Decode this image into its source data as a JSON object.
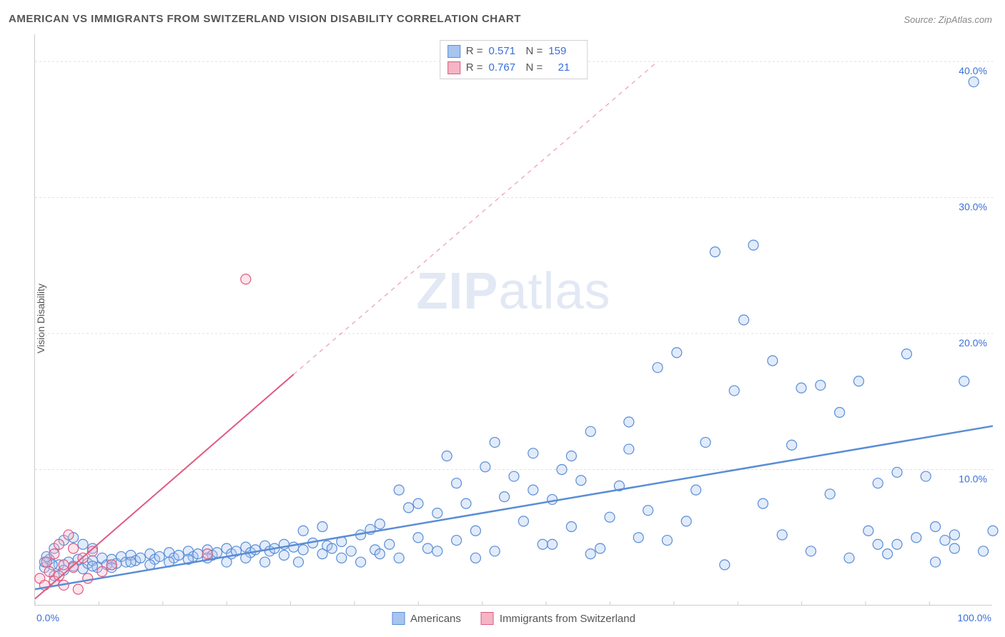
{
  "title": "AMERICAN VS IMMIGRANTS FROM SWITZERLAND VISION DISABILITY CORRELATION CHART",
  "source": "Source: ZipAtlas.com",
  "y_axis_label": "Vision Disability",
  "watermark_bold": "ZIP",
  "watermark_light": "atlas",
  "chart": {
    "type": "scatter",
    "xlim": [
      0,
      100
    ],
    "ylim": [
      0,
      42
    ],
    "x_ticks": [
      0,
      100
    ],
    "x_tick_labels": [
      "0.0%",
      "100.0%"
    ],
    "y_ticks": [
      10,
      20,
      30,
      40
    ],
    "y_tick_labels": [
      "10.0%",
      "20.0%",
      "30.0%",
      "40.0%"
    ],
    "x_minor_tick_step": 6.67,
    "grid_color": "#e0e0e0",
    "grid_dash": "3,3",
    "background_color": "#ffffff",
    "axis_label_color": "#3b6fd8",
    "axis_label_fontsize": 14,
    "marker_radius": 7,
    "marker_fill_opacity": 0.35,
    "marker_stroke_width": 1.2
  },
  "series": [
    {
      "name": "Americans",
      "color": "#6699e8",
      "fill": "#a8c5f0",
      "stroke": "#5a8dd6",
      "r_value": "0.571",
      "n_value": "159",
      "trend": {
        "x1": 0,
        "y1": 1.2,
        "x2": 100,
        "y2": 13.2,
        "dash_after_x": 100,
        "width": 2.5
      },
      "points": [
        [
          1,
          2.8
        ],
        [
          1.5,
          3.4
        ],
        [
          2,
          2.2
        ],
        [
          2.5,
          3.0
        ],
        [
          3,
          2.6
        ],
        [
          3.5,
          3.2
        ],
        [
          4,
          2.9
        ],
        [
          4.5,
          3.4
        ],
        [
          5,
          2.7
        ],
        [
          5.5,
          3.1
        ],
        [
          6,
          3.3
        ],
        [
          6.5,
          2.8
        ],
        [
          7,
          3.5
        ],
        [
          7.5,
          3.0
        ],
        [
          8,
          3.4
        ],
        [
          8.5,
          3.1
        ],
        [
          9,
          3.6
        ],
        [
          9.5,
          3.2
        ],
        [
          10,
          3.7
        ],
        [
          10.5,
          3.3
        ],
        [
          11,
          3.5
        ],
        [
          12,
          3.8
        ],
        [
          12.5,
          3.4
        ],
        [
          13,
          3.6
        ],
        [
          14,
          3.9
        ],
        [
          14.5,
          3.5
        ],
        [
          15,
          3.7
        ],
        [
          16,
          4.0
        ],
        [
          16.5,
          3.6
        ],
        [
          17,
          3.8
        ],
        [
          18,
          4.1
        ],
        [
          18.5,
          3.7
        ],
        [
          19,
          3.9
        ],
        [
          20,
          4.2
        ],
        [
          20.5,
          3.8
        ],
        [
          21,
          4.0
        ],
        [
          22,
          4.3
        ],
        [
          22.5,
          3.9
        ],
        [
          23,
          4.1
        ],
        [
          24,
          4.4
        ],
        [
          24.5,
          4.0
        ],
        [
          25,
          4.2
        ],
        [
          26,
          4.5
        ],
        [
          27,
          4.3
        ],
        [
          27.5,
          3.2
        ],
        [
          28,
          4.1
        ],
        [
          29,
          4.6
        ],
        [
          30,
          3.8
        ],
        [
          30.5,
          4.4
        ],
        [
          31,
          4.2
        ],
        [
          32,
          4.7
        ],
        [
          33,
          4.0
        ],
        [
          34,
          3.2
        ],
        [
          35,
          5.6
        ],
        [
          35.5,
          4.1
        ],
        [
          36,
          3.8
        ],
        [
          37,
          4.5
        ],
        [
          38,
          8.5
        ],
        [
          39,
          7.2
        ],
        [
          40,
          5.0
        ],
        [
          41,
          4.2
        ],
        [
          42,
          6.8
        ],
        [
          43,
          11.0
        ],
        [
          44,
          4.8
        ],
        [
          45,
          7.5
        ],
        [
          46,
          5.5
        ],
        [
          47,
          10.2
        ],
        [
          48,
          4.0
        ],
        [
          49,
          8.0
        ],
        [
          50,
          9.5
        ],
        [
          51,
          6.2
        ],
        [
          52,
          11.2
        ],
        [
          53,
          4.5
        ],
        [
          54,
          7.8
        ],
        [
          55,
          10.0
        ],
        [
          56,
          5.8
        ],
        [
          57,
          9.2
        ],
        [
          58,
          12.8
        ],
        [
          59,
          4.2
        ],
        [
          60,
          6.5
        ],
        [
          61,
          8.8
        ],
        [
          62,
          11.5
        ],
        [
          63,
          5.0
        ],
        [
          64,
          7.0
        ],
        [
          65,
          17.5
        ],
        [
          66,
          4.8
        ],
        [
          67,
          18.6
        ],
        [
          68,
          6.2
        ],
        [
          69,
          8.5
        ],
        [
          70,
          12.0
        ],
        [
          71,
          26.0
        ],
        [
          72,
          3.0
        ],
        [
          73,
          15.8
        ],
        [
          74,
          21.0
        ],
        [
          75,
          26.5
        ],
        [
          76,
          7.5
        ],
        [
          77,
          18.0
        ],
        [
          78,
          5.2
        ],
        [
          79,
          11.8
        ],
        [
          80,
          16.0
        ],
        [
          81,
          4.0
        ],
        [
          82,
          16.2
        ],
        [
          83,
          8.2
        ],
        [
          84,
          14.2
        ],
        [
          85,
          3.5
        ],
        [
          86,
          16.5
        ],
        [
          87,
          5.5
        ],
        [
          88,
          9.0
        ],
        [
          89,
          3.8
        ],
        [
          90,
          4.5
        ],
        [
          91,
          18.5
        ],
        [
          92,
          5.0
        ],
        [
          93,
          9.5
        ],
        [
          94,
          3.2
        ],
        [
          95,
          4.8
        ],
        [
          96,
          5.2
        ],
        [
          97,
          16.5
        ],
        [
          98,
          38.5
        ],
        [
          99,
          4.0
        ],
        [
          100,
          5.5
        ],
        [
          2,
          4.2
        ],
        [
          3,
          4.8
        ],
        [
          4,
          5.0
        ],
        [
          5,
          4.5
        ],
        [
          6,
          4.2
        ],
        [
          1,
          3.2
        ],
        [
          1.2,
          3.6
        ],
        [
          1.8,
          3.0
        ],
        [
          62,
          13.5
        ],
        [
          58,
          3.8
        ],
        [
          48,
          12.0
        ],
        [
          46,
          3.5
        ],
        [
          52,
          8.5
        ],
        [
          54,
          4.5
        ],
        [
          56,
          11.0
        ],
        [
          32,
          3.5
        ],
        [
          34,
          5.2
        ],
        [
          36,
          6.0
        ],
        [
          38,
          3.5
        ],
        [
          40,
          7.5
        ],
        [
          42,
          4.0
        ],
        [
          44,
          9.0
        ],
        [
          28,
          5.5
        ],
        [
          30,
          5.8
        ],
        [
          22,
          3.5
        ],
        [
          24,
          3.2
        ],
        [
          26,
          3.7
        ],
        [
          18,
          3.5
        ],
        [
          20,
          3.2
        ],
        [
          14,
          3.2
        ],
        [
          16,
          3.4
        ],
        [
          12,
          3.0
        ],
        [
          10,
          3.2
        ],
        [
          8,
          2.8
        ],
        [
          6,
          2.9
        ],
        [
          96,
          4.2
        ],
        [
          94,
          5.8
        ],
        [
          90,
          9.8
        ],
        [
          88,
          4.5
        ]
      ]
    },
    {
      "name": "Immigrants from Switzerland",
      "color": "#e86a8e",
      "fill": "#f5b5c5",
      "stroke": "#e05a80",
      "r_value": "0.767",
      "n_value": "21",
      "trend": {
        "x1": 0,
        "y1": 0.5,
        "x2": 27,
        "y2": 17.0,
        "dash_after_x": 27,
        "dash_to_x": 65,
        "dash_to_y": 40,
        "width": 2
      },
      "points": [
        [
          0.5,
          2.0
        ],
        [
          1,
          1.5
        ],
        [
          1.2,
          3.2
        ],
        [
          1.5,
          2.5
        ],
        [
          2,
          1.8
        ],
        [
          2,
          3.8
        ],
        [
          2.5,
          2.2
        ],
        [
          2.5,
          4.5
        ],
        [
          3,
          1.5
        ],
        [
          3,
          3.0
        ],
        [
          3.5,
          5.2
        ],
        [
          4,
          2.8
        ],
        [
          4,
          4.2
        ],
        [
          4.5,
          1.2
        ],
        [
          5,
          3.5
        ],
        [
          5.5,
          2.0
        ],
        [
          6,
          4.0
        ],
        [
          7,
          2.5
        ],
        [
          8,
          3.0
        ],
        [
          18,
          3.8
        ],
        [
          22,
          24.0
        ]
      ]
    }
  ],
  "bottom_legend": [
    {
      "label": "Americans",
      "fill": "#a8c5f0",
      "stroke": "#5a8dd6"
    },
    {
      "label": "Immigrants from Switzerland",
      "fill": "#f5b5c5",
      "stroke": "#e05a80"
    }
  ]
}
